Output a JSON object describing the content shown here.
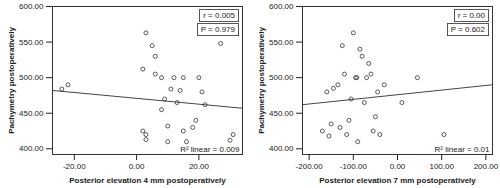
{
  "chart_data": [
    {
      "type": "scatter",
      "x_label": "Posterior elevation 4 mm postoperatively",
      "y_label": "Pachymetry postoperatively",
      "x": [
        -24,
        -22,
        2,
        3,
        5,
        6,
        6,
        3,
        2,
        3,
        8,
        9,
        10,
        10,
        12,
        13,
        14,
        15,
        15,
        16,
        18,
        19,
        20,
        21,
        22,
        27,
        31,
        30,
        8,
        11
      ],
      "values": [
        484,
        490,
        512,
        563,
        545,
        530,
        505,
        420,
        425,
        413,
        500,
        470,
        432,
        410,
        500,
        465,
        482,
        500,
        425,
        410,
        430,
        440,
        500,
        480,
        462,
        548,
        420,
        412,
        455,
        484
      ],
      "color": "#333333",
      "marker": "circle",
      "fit_line": {
        "x": [
          -27,
          34
        ],
        "values": [
          482,
          457
        ]
      },
      "annotations": [
        "r = 0.005",
        "P = 0.979"
      ],
      "fit_label": "R² linear = 0.009",
      "xlim": [
        -27,
        34
      ],
      "ylim": [
        392,
        600
      ],
      "xticks": [
        {
          "value": -20,
          "label": "-20.00"
        },
        {
          "value": 0,
          "label": "0.00"
        },
        {
          "value": 20,
          "label": "20.00"
        }
      ],
      "yticks": [
        {
          "value": 400,
          "label": "400.00"
        },
        {
          "value": 450,
          "label": "450.00"
        },
        {
          "value": 500,
          "label": "500.00"
        },
        {
          "value": 550,
          "label": "550.00"
        },
        {
          "value": 600,
          "label": "600.00"
        }
      ]
    },
    {
      "type": "scatter",
      "x_label": "Posterior elevation 7 mm postoperatively",
      "y_label": "Pachymetry postoperatively",
      "x": [
        -170,
        -160,
        -155,
        -150,
        -145,
        -135,
        -130,
        -125,
        -120,
        -115,
        -110,
        -105,
        -100,
        -95,
        -92,
        -90,
        -85,
        -80,
        -75,
        -70,
        -65,
        -60,
        -55,
        -50,
        -45,
        -40,
        10,
        45,
        105,
        -30
      ],
      "values": [
        425,
        480,
        418,
        435,
        485,
        490,
        430,
        545,
        505,
        420,
        440,
        470,
        563,
        500,
        500,
        410,
        540,
        530,
        465,
        500,
        520,
        505,
        425,
        445,
        480,
        420,
        465,
        500,
        420,
        490
      ],
      "color": "#333333",
      "marker": "circle",
      "fit_line": {
        "x": [
          -215,
          215
        ],
        "values": [
          462,
          490
        ]
      },
      "annotations": [
        "r = 0.00",
        "P = 0.602"
      ],
      "fit_label": "R² linear = 0.01",
      "xlim": [
        -215,
        215
      ],
      "ylim": [
        392,
        600
      ],
      "xticks": [
        {
          "value": -200,
          "label": "-200.00"
        },
        {
          "value": -100,
          "label": "-100.00"
        },
        {
          "value": 0,
          "label": "0.00"
        },
        {
          "value": 100,
          "label": "100.00"
        },
        {
          "value": 200,
          "label": "200.00"
        }
      ],
      "yticks": [
        {
          "value": 400,
          "label": "400.00"
        },
        {
          "value": 450,
          "label": "450.00"
        },
        {
          "value": 500,
          "label": "500.00"
        },
        {
          "value": 550,
          "label": "550.00"
        },
        {
          "value": 600,
          "label": "600.00"
        }
      ]
    }
  ]
}
